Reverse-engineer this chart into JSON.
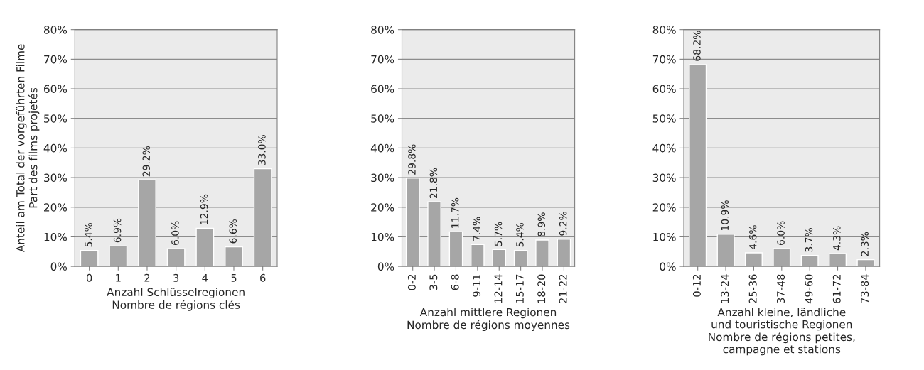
{
  "chart_data": [
    {
      "type": "bar",
      "ylabel": "Anteil am Total der vorgeführten Filme\nPart des films projetés",
      "xlabel": "Anzahl Schlüsselregionen\nNombre de régions clés",
      "categories": [
        "0",
        "1",
        "2",
        "3",
        "4",
        "5",
        "6"
      ],
      "values": [
        5.4,
        6.9,
        29.2,
        6.0,
        12.9,
        6.6,
        33.0
      ],
      "value_labels": [
        "5.4%",
        "6.9%",
        "29.2%",
        "6.0%",
        "12.9%",
        "6.6%",
        "33.0%"
      ],
      "color": "#a6a6a6",
      "ylim": [
        0,
        80
      ],
      "yticks": [
        {
          "value": 0,
          "label": "0%"
        },
        {
          "value": 10,
          "label": "10%"
        },
        {
          "value": 20,
          "label": "20%"
        },
        {
          "value": 30,
          "label": "30%"
        },
        {
          "value": 40,
          "label": "40%"
        },
        {
          "value": 50,
          "label": "50%"
        },
        {
          "value": 60,
          "label": "60%"
        },
        {
          "value": 70,
          "label": "70%"
        },
        {
          "value": 80,
          "label": "80%"
        }
      ],
      "grid": "y"
    },
    {
      "type": "bar",
      "xlabel": "Anzahl mittlere Regionen\nNombre de régions moyennes",
      "categories": [
        "0-2",
        "3-5",
        "6-8",
        "9-11",
        "12-14",
        "15-17",
        "18-20",
        "21-22"
      ],
      "values": [
        29.8,
        21.8,
        11.7,
        7.4,
        5.7,
        5.4,
        8.9,
        9.2
      ],
      "value_labels": [
        "29.8%",
        "21.8%",
        "11.7%",
        "7.4%",
        "5.7%",
        "5.4%",
        "8.9%",
        "9.2%"
      ],
      "color": "#a6a6a6",
      "ylim": [
        0,
        80
      ],
      "yticks": [
        {
          "value": 0,
          "label": "0%"
        },
        {
          "value": 10,
          "label": "10%"
        },
        {
          "value": 20,
          "label": "20%"
        },
        {
          "value": 30,
          "label": "30%"
        },
        {
          "value": 40,
          "label": "40%"
        },
        {
          "value": 50,
          "label": "50%"
        },
        {
          "value": 60,
          "label": "60%"
        },
        {
          "value": 70,
          "label": "70%"
        },
        {
          "value": 80,
          "label": "80%"
        }
      ],
      "grid": "y"
    },
    {
      "type": "bar",
      "xlabel": "Anzahl kleine, ländliche\nund touristische Regionen\nNombre de régions petites,\ncampagne et stations",
      "categories": [
        "0-12",
        "13-24",
        "25-36",
        "37-48",
        "49-60",
        "61-72",
        "73-84"
      ],
      "values": [
        68.2,
        10.9,
        4.6,
        6.0,
        3.7,
        4.3,
        2.3
      ],
      "value_labels": [
        "68.2%",
        "10.9%",
        "4.6%",
        "6.0%",
        "3.7%",
        "4.3%",
        "2.3%"
      ],
      "color": "#a6a6a6",
      "ylim": [
        0,
        80
      ],
      "yticks": [
        {
          "value": 0,
          "label": "0%"
        },
        {
          "value": 10,
          "label": "10%"
        },
        {
          "value": 20,
          "label": "20%"
        },
        {
          "value": 30,
          "label": "30%"
        },
        {
          "value": 40,
          "label": "40%"
        },
        {
          "value": 50,
          "label": "50%"
        },
        {
          "value": 60,
          "label": "60%"
        },
        {
          "value": 70,
          "label": "70%"
        },
        {
          "value": 80,
          "label": "80%"
        }
      ],
      "grid": "y"
    }
  ]
}
